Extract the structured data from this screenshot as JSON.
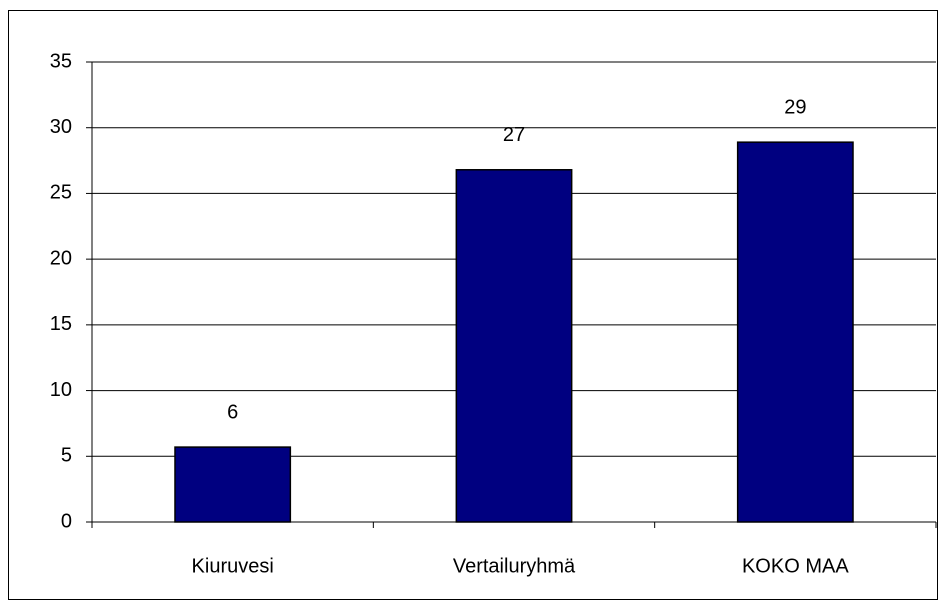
{
  "chart_data": {
    "type": "bar",
    "categories": [
      "Kiuruvesi",
      "Vertailuryhmä",
      "KOKO MAA"
    ],
    "values": [
      5.7,
      26.8,
      28.9
    ],
    "value_labels": [
      "6",
      "27",
      "29"
    ],
    "color": "#000080",
    "ylim": [
      0,
      35
    ],
    "yticks": [
      0,
      5,
      10,
      15,
      20,
      25,
      30,
      35
    ],
    "grid": true
  }
}
